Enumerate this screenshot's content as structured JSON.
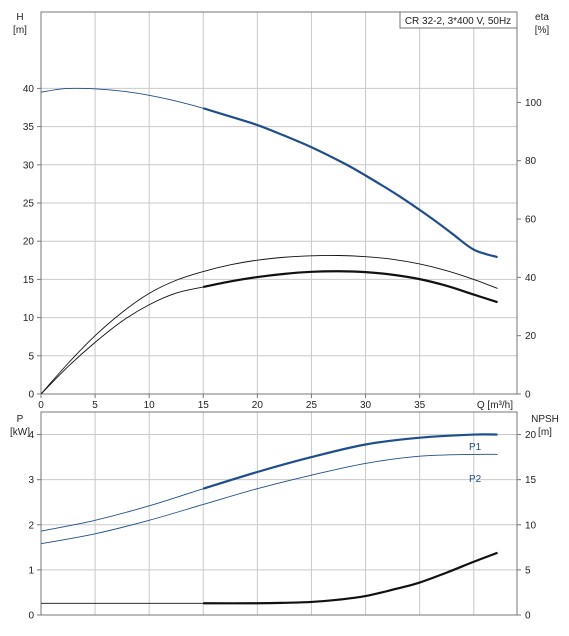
{
  "colors": {
    "grid": "#c9c9c9",
    "frame": "#777777",
    "head_curve": "#1f4e8c",
    "power_curve": "#1f4e8c",
    "efficiency_curve": "#111111",
    "npsh_curve": "#111111",
    "text": "#222222",
    "power_label": "#1f4e8c"
  },
  "chart_data": [
    {
      "type": "line",
      "title": "CR 32-2, 3*400 V, 50Hz",
      "xlabel": "Q [m³/h]",
      "ylabel_left": "H",
      "ylabel_left_unit": "[m]",
      "ylabel_right": "eta",
      "ylabel_right_unit": "[%]",
      "xlim": [
        0,
        44
      ],
      "ylim_left": [
        0,
        50
      ],
      "ylim_right": [
        0,
        131
      ],
      "x_ticks": [
        0,
        5,
        10,
        15,
        20,
        25,
        30,
        35
      ],
      "y_left_ticks": [
        0,
        5,
        10,
        15,
        20,
        25,
        30,
        35,
        40
      ],
      "y_right_ticks": [
        0,
        20,
        40,
        60,
        80,
        100
      ],
      "grid": true,
      "series": [
        {
          "axis": "left",
          "style": "thin-then-thick",
          "highlight_from": 15,
          "x": [
            0,
            2,
            4,
            6,
            8,
            10,
            12,
            15,
            18,
            20,
            22,
            25,
            28,
            30,
            33,
            36,
            38,
            40,
            42.2
          ],
          "values": [
            39.5,
            39.95,
            40.0,
            39.85,
            39.55,
            39.1,
            38.5,
            37.4,
            36.1,
            35.2,
            34.1,
            32.3,
            30.2,
            28.6,
            26.0,
            23.1,
            21.0,
            18.9,
            17.9
          ]
        },
        {
          "axis": "right",
          "style": "thin",
          "x": [
            0,
            2.5,
            5,
            7.5,
            10,
            12.5,
            15,
            17.5,
            20,
            22.5,
            25,
            27.5,
            30,
            32.5,
            35,
            37.5,
            40,
            42.2
          ],
          "values": [
            0,
            10.5,
            20,
            28,
            34.5,
            39,
            42,
            44.3,
            45.9,
            46.9,
            47.4,
            47.5,
            47.1,
            46.2,
            44.6,
            42.3,
            39.3,
            36.2
          ]
        },
        {
          "axis": "right",
          "style": "thin-then-thick",
          "highlight_from": 15,
          "x": [
            0,
            2.5,
            5,
            7.5,
            10,
            12.5,
            15,
            17.5,
            20,
            22.5,
            25,
            27.5,
            30,
            32.5,
            35,
            37.5,
            40,
            42.2
          ],
          "values": [
            0,
            9.4,
            17.7,
            25,
            30.6,
            34.6,
            36.7,
            38.6,
            40.1,
            41.2,
            41.9,
            42.1,
            41.8,
            40.9,
            39.4,
            37.1,
            34.1,
            31.5
          ]
        }
      ]
    },
    {
      "type": "line",
      "xlim": [
        0,
        44
      ],
      "ylabel_left": "P",
      "ylabel_left_unit": "[kW]",
      "ylabel_right": "NPSH",
      "ylabel_right_unit": "[m]",
      "ylim_left": [
        0,
        4.5
      ],
      "ylim_right": [
        0,
        22.5
      ],
      "y_left_ticks": [
        0,
        1,
        2,
        3,
        4
      ],
      "y_right_ticks": [
        0,
        5,
        10,
        15,
        20
      ],
      "grid": true,
      "series": [
        {
          "name": "P1",
          "axis": "left",
          "style": "thin-then-thick",
          "highlight_from": 15,
          "x": [
            0,
            5,
            10,
            15,
            20,
            25,
            30,
            35,
            40,
            42.2
          ],
          "values": [
            1.86,
            2.1,
            2.42,
            2.8,
            3.17,
            3.5,
            3.78,
            3.93,
            4.0,
            4.0
          ]
        },
        {
          "name": "P2",
          "axis": "left",
          "style": "thin",
          "x": [
            0,
            5,
            10,
            15,
            20,
            25,
            30,
            35,
            40,
            42.2
          ],
          "values": [
            1.58,
            1.8,
            2.1,
            2.45,
            2.8,
            3.1,
            3.36,
            3.52,
            3.56,
            3.56
          ]
        },
        {
          "axis": "right",
          "style": "thin-then-thick",
          "highlight_from": 15,
          "x": [
            0,
            5,
            10,
            15,
            20,
            22.5,
            25,
            27.5,
            30,
            32.5,
            35,
            37.5,
            40,
            42.2
          ],
          "values": [
            1.3,
            1.3,
            1.3,
            1.3,
            1.3,
            1.35,
            1.45,
            1.7,
            2.1,
            2.8,
            3.6,
            4.7,
            5.9,
            6.9
          ]
        }
      ]
    }
  ]
}
